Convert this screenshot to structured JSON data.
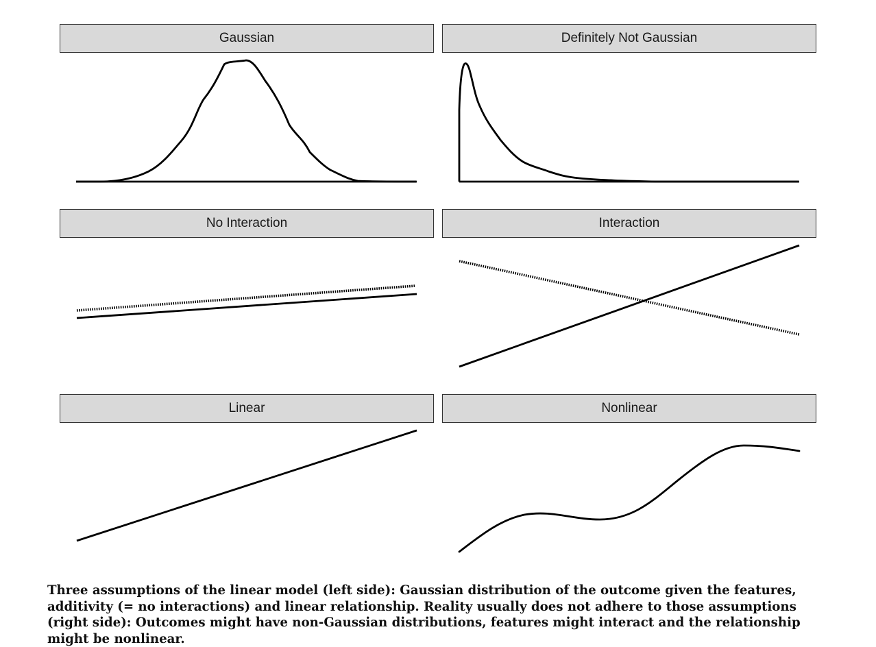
{
  "figure": {
    "panels": [
      {
        "id": "gaussian",
        "title": "Gaussian",
        "kind": "density",
        "shape": "symmetric bell"
      },
      {
        "id": "not-gaussian",
        "title": "Definitely Not Gaussian",
        "kind": "density",
        "shape": "right-skewed with hard floor"
      },
      {
        "id": "no-interaction",
        "title": "No Interaction",
        "kind": "lines",
        "lines": [
          "solid",
          "dotted"
        ],
        "relationship": "parallel"
      },
      {
        "id": "interaction",
        "title": "Interaction",
        "kind": "lines",
        "lines": [
          "solid",
          "dotted"
        ],
        "relationship": "crossing"
      },
      {
        "id": "linear",
        "title": "Linear",
        "kind": "curve",
        "relationship": "straight line"
      },
      {
        "id": "nonlinear",
        "title": "Nonlinear",
        "kind": "curve",
        "relationship": "wavy curve"
      }
    ],
    "colors": {
      "header_bg": "#d9d9d9",
      "header_border": "#333333",
      "line": "#000000"
    }
  },
  "caption": "Three assumptions of the linear model (left side): Gaussian distribution of the outcome given the features, additivity (= no interactions) and linear relationship. Reality usually does not adhere to those assumptions (right side): Outcomes might have non-Gaussian distributions, features might interact and the relationship might be nonlinear."
}
